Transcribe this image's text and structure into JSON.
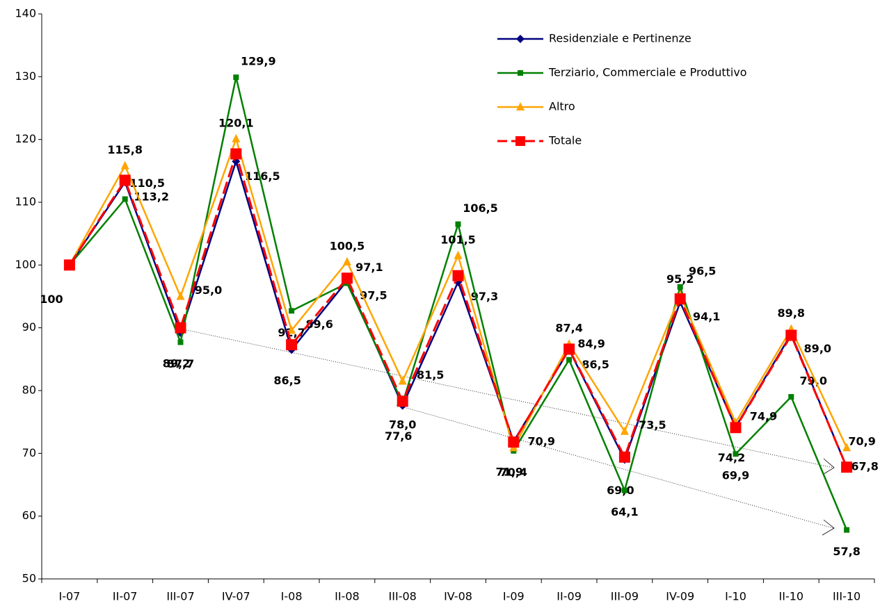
{
  "chart_data": {
    "type": "line",
    "categories": [
      "I-07",
      "II-07",
      "III-07",
      "IV-07",
      "I-08",
      "II-08",
      "III-08",
      "IV-08",
      "I-09",
      "II-09",
      "III-09",
      "IV-09",
      "I-10",
      "II-10",
      "III-10"
    ],
    "series": [
      {
        "name": "Residenziale e Pertinenze",
        "color": "#000080",
        "marker": "diamond",
        "values": [
          100,
          113.2,
          89.2,
          116.5,
          86.5,
          97.5,
          77.6,
          97.3,
          71.9,
          86.5,
          69.0,
          94.1,
          74.2,
          89.0,
          67.8
        ],
        "value_labels": [
          "100",
          "113,2",
          "89,2",
          "116,5",
          "86,5",
          "97,5",
          "77,6",
          "97,3",
          "71,9",
          "86,5",
          "69,0",
          "94,1",
          "74,2",
          "89,0",
          "67,8"
        ]
      },
      {
        "name": "Terziario, Commerciale e Produttivo",
        "color": "#008000",
        "marker": "square",
        "values": [
          100,
          110.5,
          87.7,
          129.9,
          92.7,
          97.1,
          78.0,
          106.5,
          70.4,
          84.9,
          64.1,
          96.5,
          69.9,
          79.0,
          57.8
        ],
        "value_labels": [
          null,
          "110,5",
          "87,7",
          "129,9",
          "92,7",
          "97,1",
          "78,0",
          "106,5",
          "70,4",
          "84,9",
          "64,1",
          "96,5",
          "69,9",
          "79,0",
          "57,8"
        ]
      },
      {
        "name": "Altro",
        "color": "#FFA500",
        "marker": "triangle",
        "values": [
          100,
          115.8,
          95.0,
          120.1,
          89.6,
          100.5,
          81.5,
          101.5,
          70.9,
          87.4,
          73.5,
          95.2,
          74.9,
          89.8,
          70.9
        ],
        "value_labels": [
          null,
          "115,8",
          "95,0",
          "120,1",
          "89,6",
          "100,5",
          "81,5",
          "101,5",
          "70,9",
          "87,4",
          "73,5",
          "95,2",
          "74,9",
          "89,8",
          "70,9"
        ]
      },
      {
        "name": "Totale",
        "color": "#FF0000",
        "marker": "bigsquare",
        "dashed": true,
        "values": [
          100,
          113.5,
          90.0,
          117.7,
          87.3,
          97.9,
          78.3,
          98.3,
          71.8,
          86.6,
          69.4,
          94.6,
          74.1,
          88.8,
          67.8
        ]
      }
    ],
    "ylim": [
      50,
      140
    ],
    "yticks": [
      50,
      60,
      70,
      80,
      90,
      100,
      110,
      120,
      130,
      140
    ],
    "grid": false,
    "legend": "upper right"
  }
}
